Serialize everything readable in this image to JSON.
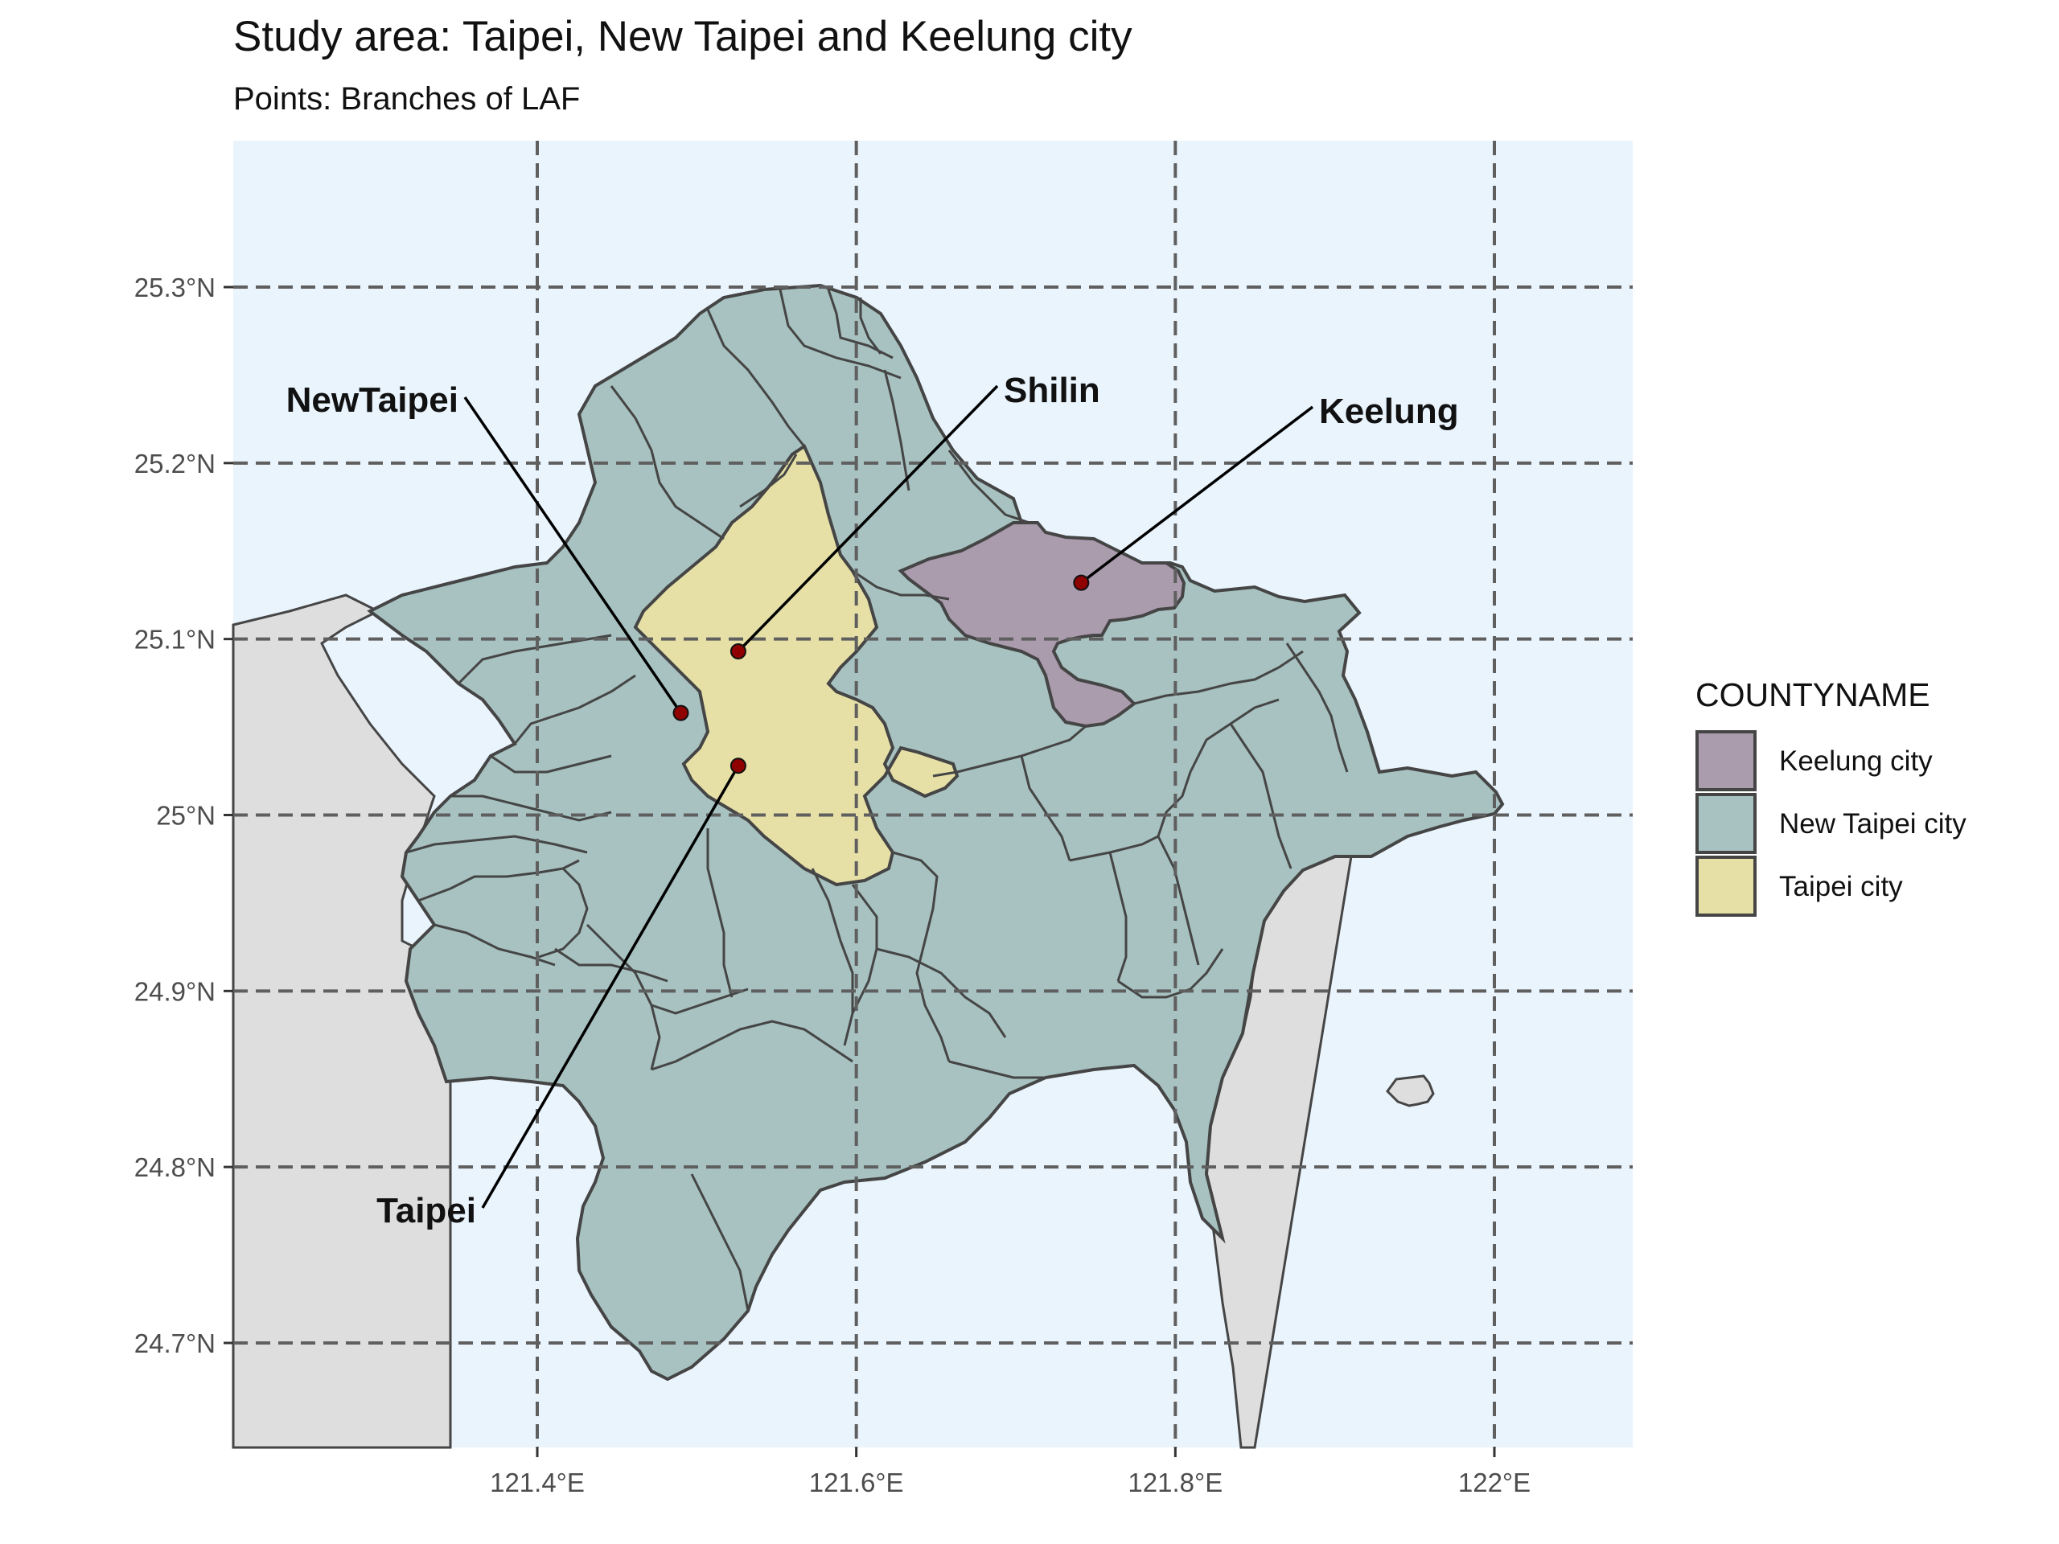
{
  "title": "Study area: Taipei, New Taipei and Keelung city",
  "subtitle": "Points: Branches of LAF",
  "colors": {
    "sea": "#eaf4fd",
    "land": "#dedede",
    "keelung": "#aa9bad",
    "new_taipei": "#a7c2c0",
    "taipei": "#e6e0a7",
    "boundary": "#454545",
    "grid": "#5f5f5f",
    "point": "#8f0000"
  },
  "axes": {
    "x_ticks": [
      {
        "value": 121.4,
        "label": "121.4°E"
      },
      {
        "value": 121.6,
        "label": "121.6°E"
      },
      {
        "value": 121.8,
        "label": "121.8°E"
      },
      {
        "value": 122.0,
        "label": "122°E"
      }
    ],
    "y_ticks": [
      {
        "value": 25.3,
        "label": "25.3°N"
      },
      {
        "value": 25.2,
        "label": "25.2°N"
      },
      {
        "value": 25.1,
        "label": "25.1°N"
      },
      {
        "value": 25.0,
        "label": "25°N"
      },
      {
        "value": 24.9,
        "label": "24.9°N"
      },
      {
        "value": 24.8,
        "label": "24.8°N"
      },
      {
        "value": 24.7,
        "label": "24.7°N"
      }
    ]
  },
  "legend": {
    "title": "COUNTYNAME",
    "items": [
      {
        "label": "Keelung city",
        "color_key": "keelung"
      },
      {
        "label": "New Taipei city",
        "color_key": "new_taipei"
      },
      {
        "label": "Taipei city",
        "color_key": "taipei"
      }
    ]
  },
  "branches": [
    {
      "name": "NewTaipei",
      "lon": 121.49,
      "lat": 25.058
    },
    {
      "name": "Shilin",
      "lon": 121.526,
      "lat": 25.093
    },
    {
      "name": "Keelung",
      "lon": 121.741,
      "lat": 25.132
    },
    {
      "name": "Taipei",
      "lon": 121.526,
      "lat": 25.028
    }
  ]
}
